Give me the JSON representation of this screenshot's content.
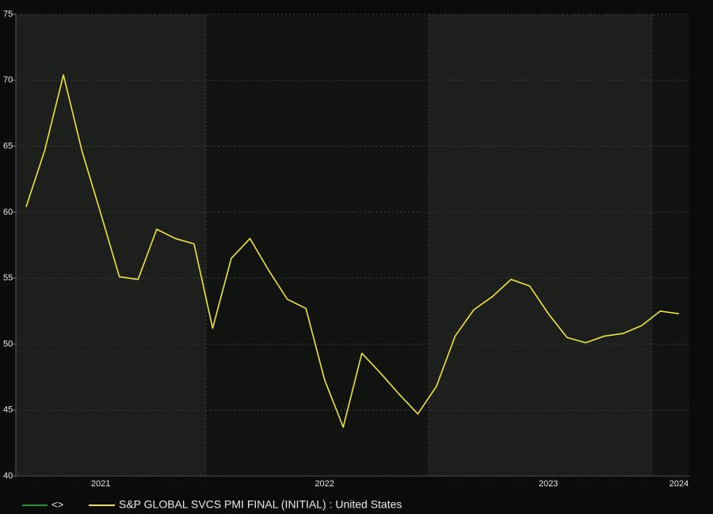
{
  "chart_data": {
    "type": "line",
    "categories": [
      null,
      null,
      null,
      null,
      "2021",
      null,
      null,
      null,
      null,
      null,
      null,
      null,
      null,
      null,
      null,
      null,
      "2022",
      null,
      null,
      null,
      null,
      null,
      null,
      null,
      null,
      null,
      null,
      null,
      "2023",
      null,
      null,
      null,
      null,
      null,
      null,
      "2024"
    ],
    "series": [
      {
        "name": "S&P GLOBAL SVCS PMI FINAL (INITIAL) : United States",
        "color": "#f0e43c",
        "values": [
          60.4,
          64.7,
          70.4,
          64.6,
          59.9,
          55.1,
          54.9,
          58.7,
          58.0,
          57.6,
          51.2,
          56.5,
          58.0,
          55.6,
          53.4,
          52.7,
          47.3,
          43.7,
          49.3,
          47.8,
          46.2,
          44.7,
          46.8,
          50.6,
          52.6,
          53.6,
          54.9,
          54.4,
          52.3,
          50.5,
          50.1,
          50.6,
          50.8,
          51.4,
          52.5,
          52.3
        ]
      }
    ],
    "legend": [
      {
        "name": "<>",
        "color": "#1f9a2a"
      }
    ],
    "ylim": [
      40,
      75
    ],
    "yticks": [
      40,
      45,
      50,
      55,
      60,
      65,
      70,
      75
    ],
    "grid": true
  }
}
